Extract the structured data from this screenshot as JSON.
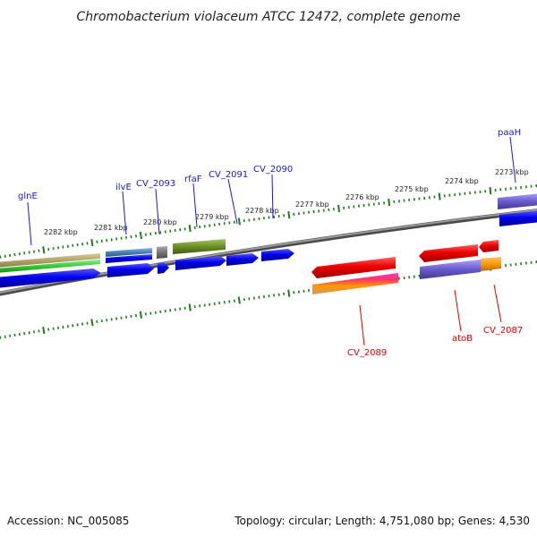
{
  "title": "Chromobacterium violaceum ATCC 12472, complete genome",
  "footer": {
    "accession": "Accession: NC_005085",
    "summary": "Topology: circular; Length: 4,751,080 bp; Genes: 4,530"
  },
  "ticks": [
    {
      "label": "2282 kbp"
    },
    {
      "label": "2281 kbp"
    },
    {
      "label": "2280 kbp"
    },
    {
      "label": "2279 kbp"
    },
    {
      "label": "2278 kbp"
    },
    {
      "label": "2277 kbp"
    },
    {
      "label": "2276 kbp"
    },
    {
      "label": "2275 kbp"
    },
    {
      "label": "2274 kbp"
    },
    {
      "label": "2273 kbp"
    }
  ],
  "gene_labels": [
    {
      "text": "glnE",
      "strand": "forward"
    },
    {
      "text": "ilvE",
      "strand": "forward"
    },
    {
      "text": "CV_2093",
      "strand": "forward"
    },
    {
      "text": "rfaF",
      "strand": "forward"
    },
    {
      "text": "CV_2091",
      "strand": "forward"
    },
    {
      "text": "CV_2090",
      "strand": "forward"
    },
    {
      "text": "paaH",
      "strand": "forward"
    },
    {
      "text": "CV_2089",
      "strand": "reverse"
    },
    {
      "text": "atoB",
      "strand": "reverse"
    },
    {
      "text": "CV_2087",
      "strand": "reverse"
    }
  ],
  "colors": {
    "forward_label": "#1a1acc",
    "reverse_label": "#dd0000",
    "tick": "#1f7a1f",
    "backbone": "#777777",
    "cds_blue": "#0000ee",
    "cds_red": "#ee0000"
  }
}
